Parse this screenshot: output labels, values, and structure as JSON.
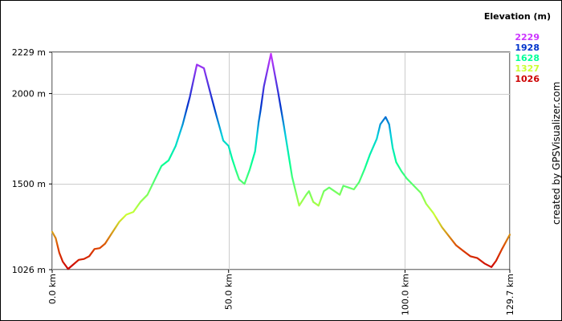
{
  "chart_data": {
    "type": "line",
    "legend": {
      "title": "Elevation (m)",
      "entries": [
        {
          "label": "2229",
          "color": "#cc33ff"
        },
        {
          "label": "1928",
          "color": "#0033cc"
        },
        {
          "label": "1628",
          "color": "#00ff99"
        },
        {
          "label": "1327",
          "color": "#ccff33"
        },
        {
          "label": "1026",
          "color": "#cc0000"
        }
      ]
    },
    "credit": "created by GPSVisualizer.com",
    "xlim": [
      0,
      129.7
    ],
    "ylim": [
      1026,
      2229
    ],
    "x_ticks": [
      {
        "value": 0,
        "label": "0.0 km"
      },
      {
        "value": 50,
        "label": "50.0 km"
      },
      {
        "value": 100,
        "label": "100.0 km"
      },
      {
        "value": 129.7,
        "label": "129.7 km"
      }
    ],
    "y_ticks": [
      {
        "value": 2229,
        "label": "2229 m"
      },
      {
        "value": 2000,
        "label": "2000 m"
      },
      {
        "value": 1500,
        "label": "1500 m"
      },
      {
        "value": 1026,
        "label": "1026 m"
      }
    ],
    "grid": true,
    "colorscale": [
      {
        "value": 1026,
        "color": "#cc0000"
      },
      {
        "value": 1327,
        "color": "#ccff33"
      },
      {
        "value": 1628,
        "color": "#00ff99"
      },
      {
        "value": 1928,
        "color": "#0033cc"
      },
      {
        "value": 2229,
        "color": "#cc33ff"
      }
    ],
    "series": [
      {
        "x": [
          0,
          1.0,
          2.0,
          3.0,
          4.5,
          6.0,
          7.5,
          9.0,
          10.5,
          12.0,
          13.5,
          15.0,
          17.0,
          19.0,
          21.0,
          23.0,
          25.0,
          27.0,
          29.0,
          31.0,
          33.0,
          35.0,
          37.0,
          39.0,
          41.0,
          43.0,
          45.0,
          46.5,
          47.5,
          48.5,
          50.0,
          51.0,
          52.0,
          53.0,
          54.5,
          56.0,
          57.5,
          58.5,
          59.0,
          60.0,
          62.0,
          64.0,
          65.5,
          66.5,
          68.0,
          70.0,
          72.0,
          72.8,
          74.0,
          75.5,
          77.0,
          78.5,
          80.0,
          81.5,
          82.5,
          84.0,
          85.5,
          87.0,
          88.5,
          90.0,
          92.0,
          93.0,
          94.5,
          95.5,
          96.5,
          97.5,
          99.0,
          100.5,
          102.5,
          104.5,
          106.0,
          108.0,
          110.5,
          112.5,
          114.5,
          116.5,
          118.5,
          120.5,
          122.5,
          124.5,
          125.8,
          127.5,
          129.7
        ],
        "y": [
          1235,
          1200,
          1120,
          1070,
          1030,
          1055,
          1080,
          1085,
          1100,
          1140,
          1145,
          1170,
          1230,
          1290,
          1330,
          1345,
          1400,
          1440,
          1520,
          1600,
          1630,
          1710,
          1830,
          1980,
          2160,
          2140,
          1990,
          1880,
          1810,
          1740,
          1710,
          1640,
          1580,
          1525,
          1500,
          1580,
          1680,
          1840,
          1900,
          2040,
          2220,
          2010,
          1840,
          1720,
          1540,
          1380,
          1440,
          1460,
          1400,
          1380,
          1460,
          1480,
          1460,
          1440,
          1490,
          1480,
          1470,
          1510,
          1580,
          1660,
          1750,
          1830,
          1870,
          1830,
          1700,
          1620,
          1570,
          1530,
          1490,
          1450,
          1390,
          1340,
          1260,
          1210,
          1160,
          1130,
          1100,
          1090,
          1060,
          1040,
          1075,
          1140,
          1220
        ]
      }
    ]
  }
}
